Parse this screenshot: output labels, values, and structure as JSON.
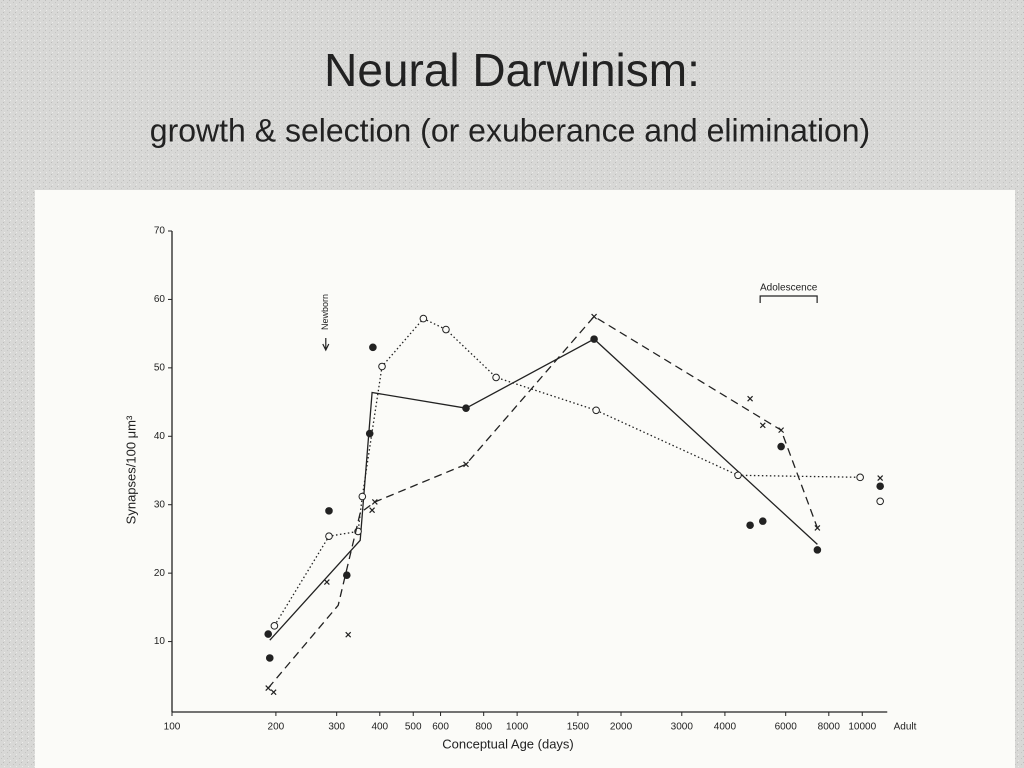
{
  "chart_data": {
    "type": "line",
    "title": "Neural Darwinism:",
    "subtitle": "growth & selection (or exuberance and elimination)",
    "x_label": "Conceptual Age (days)",
    "y_label": "Synapses/100 μm³",
    "x_scale": "log",
    "xlim": [
      100,
      13300
    ],
    "xticks": [
      100,
      200,
      300,
      400,
      500,
      600,
      800,
      1000,
      1500,
      2000,
      3000,
      4000,
      6000,
      8000,
      10000,
      {
        "value": 13300,
        "label": "Adult"
      }
    ],
    "ylim": [
      0,
      70
    ],
    "yticks": [
      10,
      20,
      30,
      40,
      50,
      60,
      70
    ],
    "series": [
      {
        "color": "#222222",
        "style": "solid",
        "marker": "filled-circle",
        "x": [
          192,
          351,
          380,
          711,
          1671,
          7413
        ],
        "values": [
          10.2,
          24.8,
          46.4,
          44.1,
          54.2,
          24.2
        ],
        "points_x": [
          190,
          192,
          285,
          321,
          382,
          374,
          711,
          1671,
          4732,
          5150,
          5820,
          7413,
          11270
        ],
        "points_y": [
          11.1,
          7.6,
          29.1,
          19.7,
          53.0,
          40.4,
          44.1,
          54.2,
          27.0,
          27.6,
          38.5,
          23.4,
          32.7
        ]
      },
      {
        "color": "#222222",
        "style": "dotted",
        "marker": "open-circle",
        "x": [
          198,
          285,
          346,
          356,
          406,
          535,
          622,
          869,
          1694,
          4365,
          9860
        ],
        "values": [
          12.3,
          25.4,
          26.1,
          31.2,
          50.2,
          57.2,
          55.6,
          48.6,
          43.8,
          34.3,
          34.0
        ],
        "points_x": [
          198,
          285,
          346,
          356,
          406,
          535,
          622,
          869,
          1694,
          4365,
          9860,
          11270
        ],
        "points_y": [
          12.3,
          25.4,
          26.1,
          31.2,
          50.2,
          57.2,
          55.6,
          48.6,
          43.8,
          34.3,
          34.0,
          30.5
        ]
      },
      {
        "color": "#222222",
        "style": "dashed",
        "marker": "x",
        "x": [
          190,
          303,
          351,
          387,
          711,
          1671,
          5820,
          7413
        ],
        "values": [
          3.2,
          15.3,
          28.8,
          30.4,
          35.9,
          57.5,
          40.9,
          26.6
        ],
        "points_x": [
          190,
          197,
          281,
          324,
          380,
          387,
          711,
          1671,
          4732,
          5150,
          5820,
          7413,
          11270
        ],
        "points_y": [
          3.2,
          2.6,
          18.7,
          11.0,
          29.2,
          30.4,
          35.9,
          57.5,
          45.5,
          41.6,
          40.9,
          26.6,
          33.9
        ]
      }
    ],
    "annotations": [
      {
        "text": "Newborn",
        "x": 279
      },
      {
        "text": "Adolescence",
        "x_start": 5060,
        "x_end": 7400
      }
    ]
  }
}
